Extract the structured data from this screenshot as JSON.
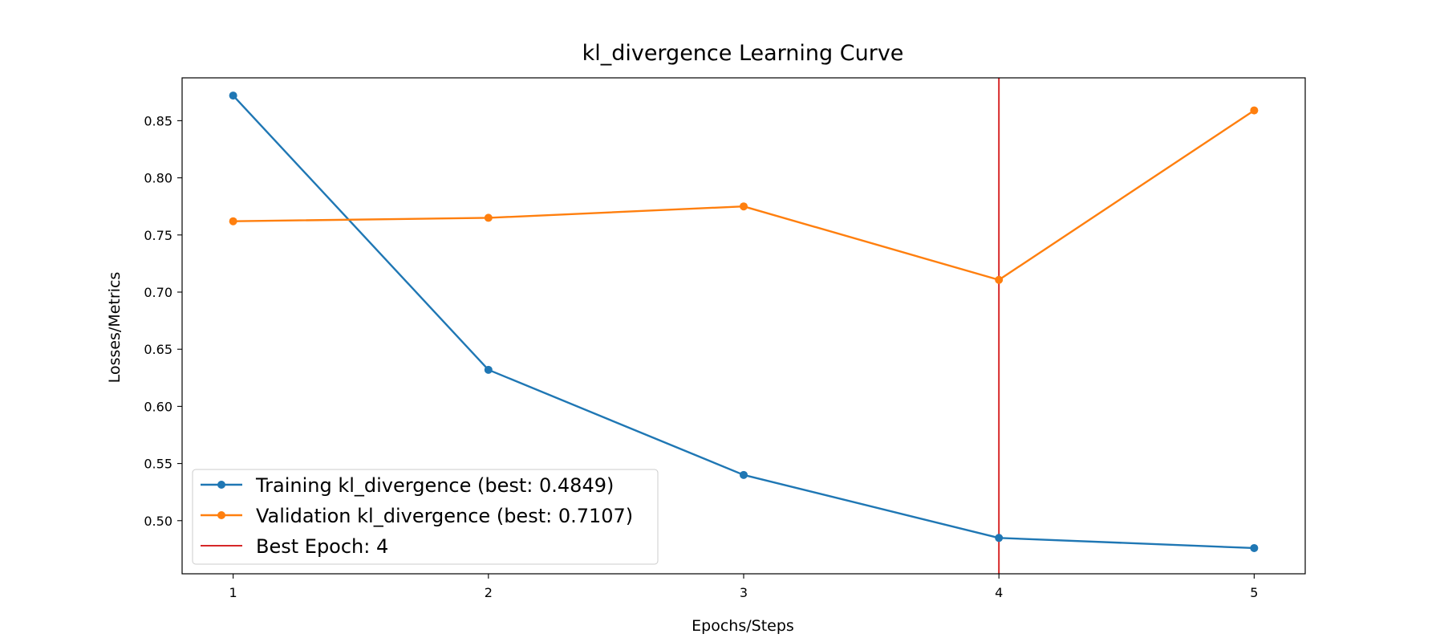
{
  "chart_data": {
    "type": "line",
    "title": "kl_divergence Learning Curve",
    "xlabel": "Epochs/Steps",
    "ylabel": "Losses/Metrics",
    "x": [
      1,
      2,
      3,
      4,
      5
    ],
    "xlim": [
      0.8,
      5.2
    ],
    "ylim": [
      0.4535,
      0.8875
    ],
    "xticks": [
      1,
      2,
      3,
      4,
      5
    ],
    "yticks": [
      0.5,
      0.55,
      0.6,
      0.65,
      0.7,
      0.75,
      0.8,
      0.85
    ],
    "ytick_labels": [
      "0.50",
      "0.55",
      "0.60",
      "0.65",
      "0.70",
      "0.75",
      "0.80",
      "0.85"
    ],
    "grid": false,
    "legend_position": "lower-left",
    "series": [
      {
        "name": "Training kl_divergence (best: 0.4849)",
        "color": "#1f77b4",
        "values": [
          0.872,
          0.632,
          0.54,
          0.4849,
          0.476
        ]
      },
      {
        "name": "Validation kl_divergence (best: 0.7107)",
        "color": "#ff7f0e",
        "values": [
          0.762,
          0.765,
          0.775,
          0.7107,
          0.859
        ]
      }
    ],
    "vline": {
      "name": "Best Epoch: 4",
      "x": 4,
      "color": "#d62728"
    }
  }
}
